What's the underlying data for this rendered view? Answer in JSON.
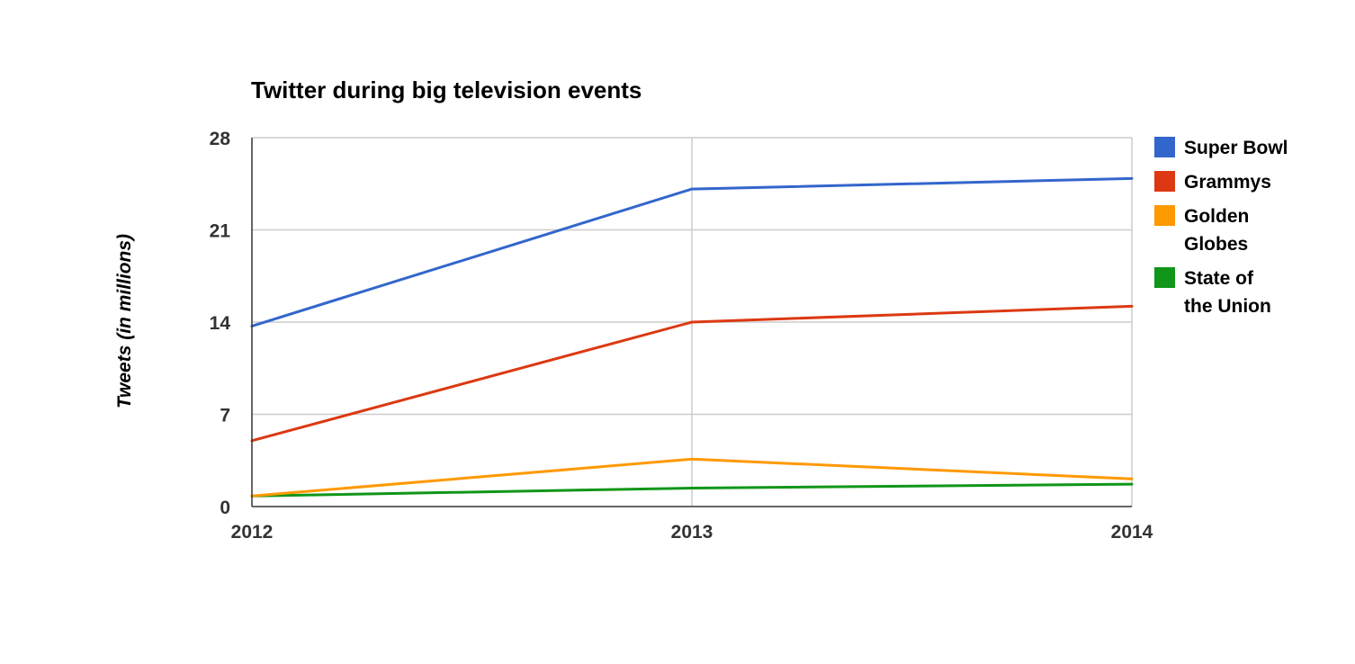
{
  "chart_data": {
    "type": "line",
    "title": "Twitter during big television events",
    "xlabel": "",
    "ylabel": "Tweets (in millions)",
    "x": [
      "2012",
      "2013",
      "2014"
    ],
    "ylim": [
      0,
      28
    ],
    "yticks": [
      "0",
      "7",
      "14",
      "21",
      "28"
    ],
    "grid": true,
    "legend_position": "right",
    "series": [
      {
        "name": "Super Bowl",
        "legend_lines": [
          "Super Bowl"
        ],
        "color": "#3366cc",
        "values": [
          13.7,
          24.1,
          24.9
        ]
      },
      {
        "name": "Grammys",
        "legend_lines": [
          "Grammys"
        ],
        "color": "#dc3912",
        "values": [
          5.0,
          14.0,
          15.2
        ]
      },
      {
        "name": "Golden Globes",
        "legend_lines": [
          "Golden",
          "Globes"
        ],
        "color": "#ff9900",
        "values": [
          0.8,
          3.6,
          2.1
        ]
      },
      {
        "name": "State of the Union",
        "legend_lines": [
          "State of",
          "the Union"
        ],
        "color": "#109618",
        "values": [
          0.8,
          1.4,
          1.7
        ]
      }
    ]
  }
}
